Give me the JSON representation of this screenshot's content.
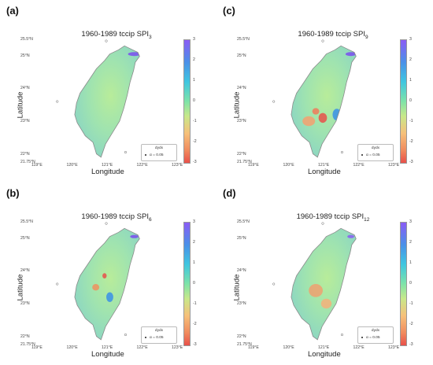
{
  "panels": [
    {
      "label": "(a)",
      "title_main": "1960-1989 tccip SPI",
      "title_sub": "3",
      "hotspots": [
        {
          "lon": 121.8,
          "lat": 25.05,
          "color": "#7a4cf0",
          "rx": 0.18,
          "ry": 0.06
        }
      ]
    },
    {
      "label": "(c)",
      "title_main": "1960-1989 tccip SPI",
      "title_sub": "9",
      "hotspots": [
        {
          "lon": 121.8,
          "lat": 25.05,
          "color": "#7a4cf0",
          "rx": 0.15,
          "ry": 0.06
        },
        {
          "lon": 121.4,
          "lat": 23.2,
          "color": "#3a8fe8",
          "rx": 0.12,
          "ry": 0.18
        },
        {
          "lon": 121.0,
          "lat": 23.1,
          "color": "#e8504a",
          "rx": 0.12,
          "ry": 0.15
        },
        {
          "lon": 120.8,
          "lat": 23.3,
          "color": "#f07a5a",
          "rx": 0.1,
          "ry": 0.1
        },
        {
          "lon": 120.6,
          "lat": 23.0,
          "color": "#f5a070",
          "rx": 0.18,
          "ry": 0.15
        }
      ]
    },
    {
      "label": "(b)",
      "title_main": "1960-1989 tccip SPI",
      "title_sub": "6",
      "hotspots": [
        {
          "lon": 121.8,
          "lat": 25.05,
          "color": "#7a4cf0",
          "rx": 0.12,
          "ry": 0.05
        },
        {
          "lon": 120.95,
          "lat": 23.85,
          "color": "#e8504a",
          "rx": 0.06,
          "ry": 0.08
        },
        {
          "lon": 121.1,
          "lat": 23.2,
          "color": "#3a8fe8",
          "rx": 0.1,
          "ry": 0.15
        },
        {
          "lon": 120.7,
          "lat": 23.5,
          "color": "#f0905e",
          "rx": 0.1,
          "ry": 0.1
        }
      ]
    },
    {
      "label": "(d)",
      "title_main": "1960-1989 tccip SPI",
      "title_sub": "12",
      "hotspots": [
        {
          "lon": 121.8,
          "lat": 25.05,
          "color": "#8a5cf5",
          "rx": 0.1,
          "ry": 0.05
        },
        {
          "lon": 120.8,
          "lat": 23.4,
          "color": "#f0a070",
          "rx": 0.2,
          "ry": 0.2
        },
        {
          "lon": 121.1,
          "lat": 23.0,
          "color": "#f5b07a",
          "rx": 0.15,
          "ry": 0.15
        }
      ]
    }
  ],
  "axes": {
    "xlabel": "Longitude",
    "ylabel": "Latitude",
    "xticks": [
      "119°E",
      "120°E",
      "121°E",
      "122°E",
      "123°E"
    ],
    "yticks": [
      "21.75°N",
      "22°N",
      "23°N",
      "24°N",
      "25°N",
      "25.5°N"
    ],
    "lon_range": [
      119,
      123
    ],
    "lat_range": [
      21.75,
      25.5
    ]
  },
  "colorbar": {
    "ticks": [
      "3",
      "2",
      "1",
      "0",
      "-1",
      "-2",
      "-3"
    ],
    "range": [
      -3,
      3
    ]
  },
  "legend": {
    "title": "dydx",
    "entry": "α = 0.05"
  },
  "colors": {
    "land_base": "#a4e6b6",
    "coast": "#8a8a8a"
  }
}
